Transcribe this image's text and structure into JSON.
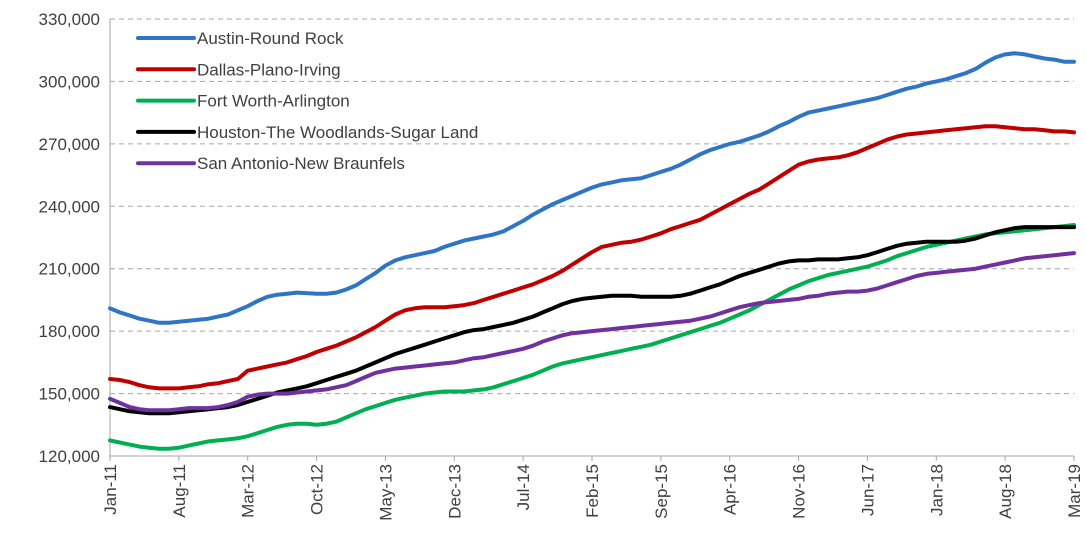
{
  "chart_data": {
    "type": "line",
    "categories": [
      "Jan-11",
      null,
      null,
      null,
      null,
      null,
      null,
      "Aug-11",
      null,
      null,
      null,
      null,
      null,
      null,
      "Mar-12",
      null,
      null,
      null,
      null,
      null,
      null,
      "Oct-12",
      null,
      null,
      null,
      null,
      null,
      null,
      "May-13",
      null,
      null,
      null,
      null,
      null,
      null,
      "Dec-13",
      null,
      null,
      null,
      null,
      null,
      null,
      "Jul-14",
      null,
      null,
      null,
      null,
      null,
      null,
      "Feb-15",
      null,
      null,
      null,
      null,
      null,
      null,
      "Sep-15",
      null,
      null,
      null,
      null,
      null,
      null,
      "Apr-16",
      null,
      null,
      null,
      null,
      null,
      null,
      "Nov-16",
      null,
      null,
      null,
      null,
      null,
      null,
      "Jun-17",
      null,
      null,
      null,
      null,
      null,
      null,
      "Jan-18",
      null,
      null,
      null,
      null,
      null,
      null,
      "Aug-18",
      null,
      null,
      null,
      null,
      null,
      null,
      "Mar-19"
    ],
    "series": [
      {
        "name": "Austin-Round Rock",
        "color": "#2e75c6",
        "values": [
          191000,
          189000,
          187500,
          186000,
          185000,
          184000,
          184000,
          184500,
          185000,
          185500,
          186000,
          187000,
          188000,
          190000,
          192000,
          194500,
          196500,
          197500,
          198000,
          198500,
          198300,
          198000,
          198000,
          198500,
          200000,
          202000,
          205000,
          208000,
          211500,
          214000,
          215500,
          216500,
          217500,
          218500,
          220500,
          222000,
          223500,
          224500,
          225500,
          226500,
          228000,
          230500,
          233000,
          236000,
          238500,
          241000,
          243000,
          245000,
          247000,
          249000,
          250500,
          251500,
          252500,
          253000,
          253500,
          255000,
          256500,
          258000,
          260000,
          262500,
          265000,
          267000,
          268500,
          270000,
          271000,
          272500,
          274000,
          276000,
          278500,
          280500,
          283000,
          285000,
          286000,
          287000,
          288000,
          289000,
          290000,
          291000,
          292000,
          293500,
          295000,
          296500,
          297500,
          299000,
          300000,
          301000,
          302500,
          304000,
          306000,
          309000,
          311500,
          313000,
          313500,
          313000,
          312000,
          311000,
          310500,
          309500,
          309500
        ]
      },
      {
        "name": "Dallas-Plano-Irving",
        "color": "#c00000",
        "values": [
          157000,
          156500,
          155500,
          154000,
          153000,
          152500,
          152500,
          152500,
          153000,
          153500,
          154500,
          155000,
          156000,
          157000,
          161000,
          162000,
          163000,
          164000,
          165000,
          166500,
          168000,
          170000,
          171500,
          173000,
          175000,
          177000,
          179500,
          182000,
          185000,
          188000,
          190000,
          191000,
          191500,
          191500,
          191500,
          192000,
          192500,
          193500,
          195000,
          196500,
          198000,
          199500,
          201000,
          202500,
          204500,
          206500,
          209000,
          212000,
          215000,
          218000,
          220500,
          221500,
          222500,
          223000,
          224000,
          225500,
          227000,
          229000,
          230500,
          232000,
          233500,
          236000,
          238500,
          241000,
          243500,
          246000,
          248000,
          251000,
          254000,
          257000,
          260000,
          261500,
          262500,
          263000,
          263500,
          264500,
          266000,
          268000,
          270000,
          272000,
          273500,
          274500,
          275000,
          275500,
          276000,
          276500,
          277000,
          277500,
          278000,
          278500,
          278500,
          278000,
          277500,
          277000,
          277000,
          276500,
          276000,
          276000,
          275500
        ]
      },
      {
        "name": "Fort Worth-Arlington",
        "color": "#00b050",
        "values": [
          127500,
          126500,
          125500,
          124500,
          124000,
          123500,
          123500,
          124000,
          125000,
          126000,
          127000,
          127500,
          128000,
          128500,
          129500,
          131000,
          132500,
          134000,
          135000,
          135500,
          135500,
          135000,
          135500,
          136500,
          138500,
          140500,
          142500,
          144000,
          145500,
          147000,
          148000,
          149000,
          150000,
          150500,
          151000,
          151000,
          151000,
          151500,
          152000,
          153000,
          154500,
          156000,
          157500,
          159000,
          161000,
          163000,
          164500,
          165500,
          166500,
          167500,
          168500,
          169500,
          170500,
          171500,
          172500,
          173500,
          175000,
          176500,
          178000,
          179500,
          181000,
          182500,
          184000,
          186000,
          188000,
          190000,
          192500,
          195000,
          197500,
          200000,
          202000,
          204000,
          205500,
          207000,
          208000,
          209000,
          210000,
          211000,
          212500,
          214000,
          216000,
          217500,
          219000,
          220500,
          221500,
          222500,
          223500,
          224500,
          225500,
          226500,
          227000,
          227500,
          228000,
          228500,
          229000,
          229500,
          230000,
          230500,
          231000
        ]
      },
      {
        "name": "Houston-The Woodlands-Sugar Land",
        "color": "#000000",
        "values": [
          143500,
          142500,
          141500,
          141000,
          140500,
          140500,
          140500,
          141000,
          141500,
          142000,
          142500,
          143000,
          143500,
          144500,
          146000,
          147500,
          149000,
          150500,
          151500,
          152500,
          153500,
          155000,
          156500,
          158000,
          159500,
          161000,
          163000,
          165000,
          167000,
          169000,
          170500,
          172000,
          173500,
          175000,
          176500,
          178000,
          179500,
          180500,
          181000,
          182000,
          183000,
          184000,
          185500,
          187000,
          189000,
          191000,
          193000,
          194500,
          195500,
          196000,
          196500,
          197000,
          197000,
          197000,
          196500,
          196500,
          196500,
          196500,
          197000,
          198000,
          199500,
          201000,
          202500,
          204500,
          206500,
          208000,
          209500,
          211000,
          212500,
          213500,
          214000,
          214000,
          214500,
          214500,
          214500,
          215000,
          215500,
          216500,
          218000,
          219500,
          221000,
          222000,
          222500,
          223000,
          223000,
          223000,
          223000,
          223500,
          224500,
          226000,
          227500,
          228500,
          229500,
          230000,
          230000,
          230000,
          230000,
          230000,
          230000
        ]
      },
      {
        "name": "San Antonio-New Braunfels",
        "color": "#7030a0",
        "values": [
          147500,
          145500,
          143500,
          142500,
          142000,
          142000,
          142000,
          142500,
          143000,
          143000,
          143000,
          143500,
          144500,
          146000,
          148500,
          149500,
          150000,
          150000,
          150000,
          150500,
          151000,
          151500,
          152000,
          153000,
          154000,
          156000,
          158000,
          160000,
          161000,
          162000,
          162500,
          163000,
          163500,
          164000,
          164500,
          165000,
          166000,
          167000,
          167500,
          168500,
          169500,
          170500,
          171500,
          173000,
          175000,
          176500,
          178000,
          179000,
          179500,
          180000,
          180500,
          181000,
          181500,
          182000,
          182500,
          183000,
          183500,
          184000,
          184500,
          185000,
          186000,
          187000,
          188500,
          190000,
          191500,
          192500,
          193500,
          194000,
          194500,
          195000,
          195500,
          196500,
          197000,
          198000,
          198500,
          199000,
          199000,
          199500,
          200500,
          202000,
          203500,
          205000,
          206500,
          207500,
          208000,
          208500,
          209000,
          209500,
          210000,
          211000,
          212000,
          213000,
          214000,
          215000,
          215500,
          216000,
          216500,
          217000,
          217500
        ]
      }
    ],
    "ylim": [
      120000,
      330000
    ],
    "yticks": [
      {
        "value": 120000,
        "label": "120,000"
      },
      {
        "value": 150000,
        "label": "150,000"
      },
      {
        "value": 180000,
        "label": "180,000"
      },
      {
        "value": 210000,
        "label": "210,000"
      },
      {
        "value": 240000,
        "label": "240,000"
      },
      {
        "value": 270000,
        "label": "270,000"
      },
      {
        "value": 300000,
        "label": "300,000"
      },
      {
        "value": 330000,
        "label": "330,000"
      }
    ],
    "grid": true,
    "legend": "upper-left"
  }
}
